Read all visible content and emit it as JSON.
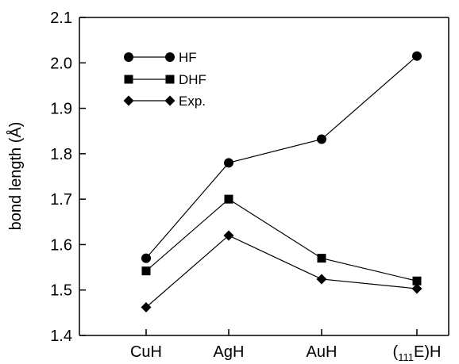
{
  "chart_data": {
    "type": "line",
    "title": "",
    "xlabel": "",
    "ylabel": "bond length (Å)",
    "categories": [
      "CuH",
      "AgH",
      "AuH",
      "(111E)H"
    ],
    "category_labels": [
      {
        "pre": "",
        "sub": "",
        "post": "CuH"
      },
      {
        "pre": "",
        "sub": "",
        "post": "AgH"
      },
      {
        "pre": "",
        "sub": "",
        "post": "AuH"
      },
      {
        "pre": "(",
        "sub": "111",
        "post": "E)H"
      }
    ],
    "ylim": [
      1.4,
      2.1
    ],
    "yticks": [
      "1.4",
      "1.5",
      "1.6",
      "1.7",
      "1.8",
      "1.9",
      "2.0",
      "2.1"
    ],
    "grid": false,
    "legend_position": "top-left",
    "series": [
      {
        "name": "HF",
        "marker": "circle",
        "values": [
          1.57,
          1.78,
          1.832,
          2.015
        ]
      },
      {
        "name": "DHF",
        "marker": "square",
        "values": [
          1.542,
          1.7,
          1.57,
          1.52
        ]
      },
      {
        "name": "Exp.",
        "marker": "diamond",
        "values": [
          1.462,
          1.62,
          1.524,
          1.503
        ]
      }
    ]
  }
}
